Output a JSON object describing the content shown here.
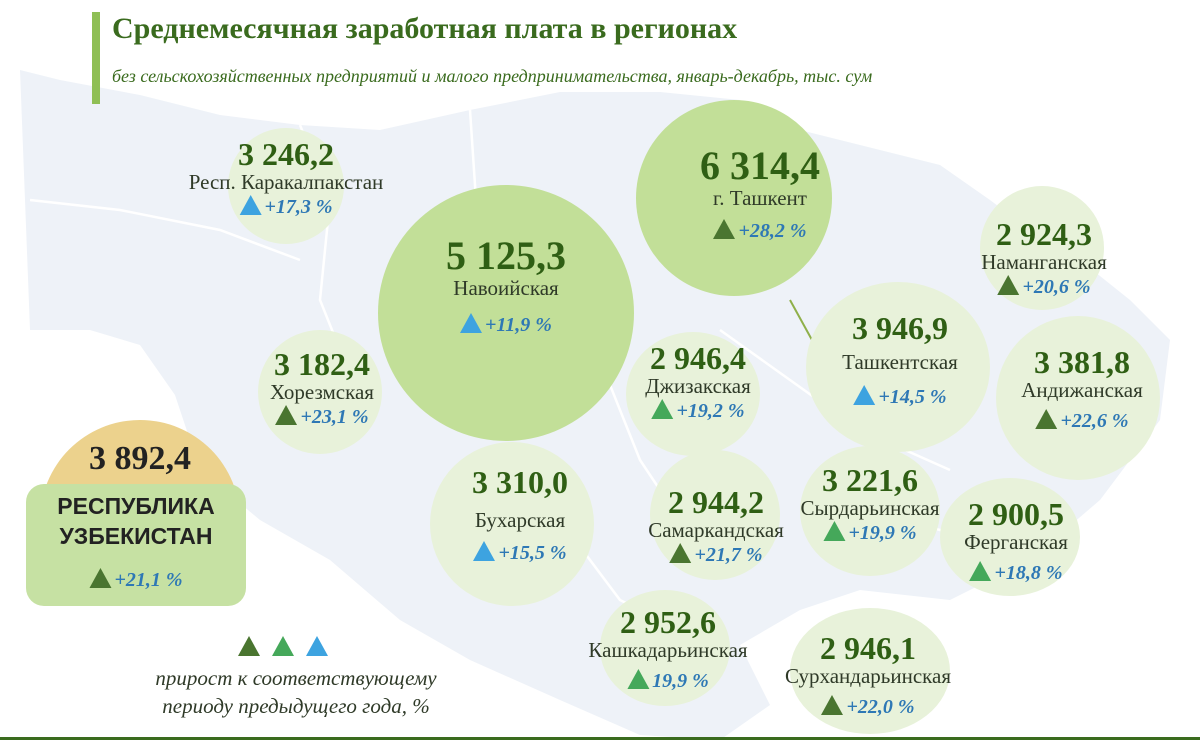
{
  "header": {
    "title": "Среднемесячная заработная плата в регионах",
    "subtitle": "без сельскохозяйственных предприятий и малого предпринимательства, январь-декабрь, тыс. сум"
  },
  "republic": {
    "value": "3 892,4",
    "name_line1": "РЕСПУБЛИКА",
    "name_line2": "УЗБЕКИСТАН",
    "growth": "+21,1 %",
    "triangle": "dark-green-triangle"
  },
  "regions": [
    {
      "value": "3 246,2",
      "name": "Респ. Каракалпакстан",
      "growth": "+17,3 %",
      "triangle": "blue-triangle"
    },
    {
      "value": "5 125,3",
      "name": "Навоийская",
      "growth": "+11,9 %",
      "triangle": "blue-triangle"
    },
    {
      "value": "6 314,4",
      "name": "г. Ташкент",
      "growth": "+28,2 %",
      "triangle": "dark-green-triangle"
    },
    {
      "value": "2 924,3",
      "name": "Наманганская",
      "growth": "+20,6 %",
      "triangle": "dark-green-triangle"
    },
    {
      "value": "3 182,4",
      "name": "Хорезмская",
      "growth": "+23,1 %",
      "triangle": "dark-green-triangle"
    },
    {
      "value": "2 946,4",
      "name": "Джизакская",
      "growth": "+19,2 %",
      "triangle": "green-triangle"
    },
    {
      "value": "3 946,9",
      "name": "Ташкентская",
      "growth": "+14,5 %",
      "triangle": "blue-triangle"
    },
    {
      "value": "3 381,8",
      "name": "Андижанская",
      "growth": "+22,6 %",
      "triangle": "dark-green-triangle"
    },
    {
      "value": "3 310,0",
      "name": "Бухарская",
      "growth": "+15,5 %",
      "triangle": "blue-triangle"
    },
    {
      "value": "2 944,2",
      "name": "Самаркандская",
      "growth": "+21,7 %",
      "triangle": "dark-green-triangle"
    },
    {
      "value": "3 221,6",
      "name": "Сырдарьинская",
      "growth": "+19,9 %",
      "triangle": "green-triangle"
    },
    {
      "value": "2 900,5",
      "name": "Ферганская",
      "growth": "+18,8 %",
      "triangle": "green-triangle"
    },
    {
      "value": "2 952,6",
      "name": "Кашкадарьинская",
      "growth": "19,9 %",
      "triangle": "green-triangle"
    },
    {
      "value": "2 946,1",
      "name": "Сурхандарьинская",
      "growth": "+22,0 %",
      "triangle": "dark-green-triangle"
    }
  ],
  "legend": {
    "triangles": [
      "dark-green-triangle",
      "green-triangle",
      "blue-triangle"
    ],
    "line1": "прирост к соответствующему",
    "line2": "периоду предыдущего года,  %"
  },
  "colors": {
    "title": "#3a6b1e",
    "value": "#2f5f14",
    "growth": "#2e78b5",
    "triangle_dark_green": "#4a7530",
    "triangle_green": "#45a85a",
    "triangle_blue": "#3da3e0",
    "bubble_light": "#e8f2da",
    "bubble_large": "#c2df98",
    "republic_box": "#c6e1a3",
    "republic_dome": "#ecd28d"
  }
}
